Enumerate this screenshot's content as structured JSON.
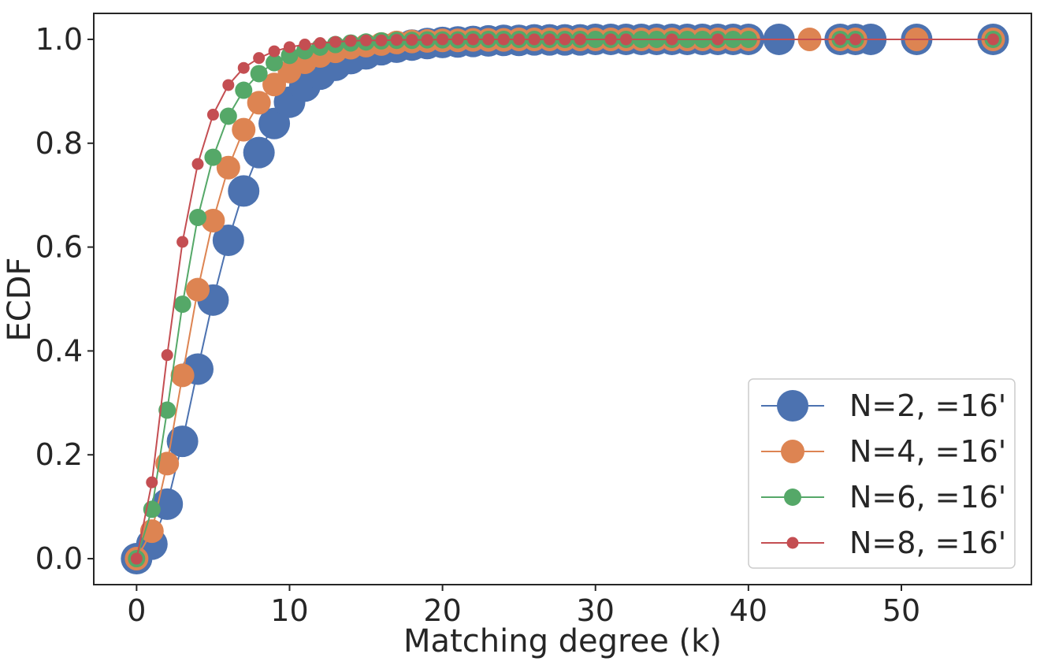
{
  "chart_data": {
    "type": "line",
    "title": "",
    "xlabel": "Matching degree (k)",
    "ylabel": "ECDF",
    "xlim": [
      -2.8,
      58.5
    ],
    "ylim": [
      -0.05,
      1.05
    ],
    "xticks": [
      0,
      10,
      20,
      30,
      40,
      50
    ],
    "xtick_labels": [
      "0",
      "10",
      "20",
      "30",
      "40",
      "50"
    ],
    "yticks": [
      0.0,
      0.2,
      0.4,
      0.6,
      0.8,
      1.0
    ],
    "ytick_labels": [
      "0.0",
      "0.2",
      "0.4",
      "0.6",
      "0.8",
      "1.0"
    ],
    "grid": false,
    "legend_position": "lower-right",
    "series": [
      {
        "name": "N=2,   =16'",
        "color": "#4C72B0",
        "marker_size": 20,
        "x": [
          0,
          1,
          2,
          3,
          4,
          5,
          6,
          7,
          8,
          9,
          10,
          11,
          12,
          13,
          14,
          15,
          16,
          17,
          18,
          19,
          20,
          21,
          22,
          23,
          24,
          25,
          26,
          27,
          28,
          29,
          30,
          31,
          32,
          33,
          34,
          35,
          36,
          37,
          38,
          39,
          40,
          42,
          46,
          47,
          48,
          51,
          56
        ],
        "y": [
          0.0,
          0.028,
          0.105,
          0.226,
          0.365,
          0.498,
          0.613,
          0.708,
          0.782,
          0.838,
          0.879,
          0.91,
          0.933,
          0.95,
          0.963,
          0.972,
          0.98,
          0.985,
          0.989,
          0.992,
          0.994,
          0.995,
          0.996,
          0.997,
          0.998,
          0.998,
          0.999,
          0.999,
          0.999,
          0.999,
          1.0,
          1.0,
          1.0,
          1.0,
          1.0,
          1.0,
          1.0,
          1.0,
          1.0,
          1.0,
          1.0,
          1.0,
          1.0,
          1.0,
          1.0,
          1.0,
          1.0
        ]
      },
      {
        "name": "N=4,   =16'",
        "color": "#DD8452",
        "marker_size": 15,
        "x": [
          0,
          1,
          2,
          3,
          4,
          5,
          6,
          7,
          8,
          9,
          10,
          11,
          12,
          13,
          14,
          15,
          16,
          17,
          18,
          19,
          20,
          21,
          22,
          23,
          24,
          25,
          26,
          27,
          28,
          29,
          30,
          31,
          32,
          33,
          34,
          35,
          36,
          37,
          38,
          39,
          40,
          44,
          46,
          47,
          51,
          56
        ],
        "y": [
          0.0,
          0.053,
          0.183,
          0.353,
          0.518,
          0.651,
          0.753,
          0.826,
          0.878,
          0.913,
          0.938,
          0.956,
          0.968,
          0.977,
          0.984,
          0.988,
          0.991,
          0.994,
          0.996,
          0.997,
          0.998,
          0.998,
          0.999,
          0.999,
          0.999,
          1.0,
          1.0,
          1.0,
          1.0,
          1.0,
          1.0,
          1.0,
          1.0,
          1.0,
          1.0,
          1.0,
          1.0,
          1.0,
          1.0,
          1.0,
          1.0,
          1.0,
          1.0,
          1.0,
          1.0,
          1.0
        ]
      },
      {
        "name": "N=6,   =16'",
        "color": "#55A868",
        "marker_size": 11,
        "x": [
          0,
          1,
          2,
          3,
          4,
          5,
          6,
          7,
          8,
          9,
          10,
          11,
          12,
          13,
          14,
          15,
          16,
          17,
          18,
          19,
          20,
          21,
          22,
          23,
          24,
          25,
          26,
          27,
          28,
          29,
          30,
          31,
          32,
          33,
          34,
          35,
          36,
          37,
          38,
          39,
          40,
          46,
          47,
          56
        ],
        "y": [
          0.0,
          0.095,
          0.286,
          0.49,
          0.657,
          0.773,
          0.852,
          0.902,
          0.934,
          0.955,
          0.969,
          0.978,
          0.985,
          0.99,
          0.993,
          0.995,
          0.997,
          0.998,
          0.998,
          0.999,
          0.999,
          0.999,
          1.0,
          1.0,
          1.0,
          1.0,
          1.0,
          1.0,
          1.0,
          1.0,
          1.0,
          1.0,
          1.0,
          1.0,
          1.0,
          1.0,
          1.0,
          1.0,
          1.0,
          1.0,
          1.0,
          1.0,
          1.0,
          1.0
        ]
      },
      {
        "name": "N=8,   =16'",
        "color": "#C44E52",
        "marker_size": 7.5,
        "x": [
          0,
          1,
          2,
          3,
          4,
          5,
          6,
          7,
          8,
          9,
          10,
          11,
          12,
          13,
          14,
          15,
          16,
          17,
          18,
          19,
          20,
          21,
          22,
          23,
          24,
          25,
          26,
          27,
          28,
          29,
          31,
          32,
          35,
          38,
          46,
          47,
          56
        ],
        "y": [
          0.0,
          0.147,
          0.392,
          0.61,
          0.76,
          0.855,
          0.912,
          0.945,
          0.964,
          0.977,
          0.985,
          0.99,
          0.993,
          0.995,
          0.997,
          0.998,
          0.998,
          0.999,
          0.999,
          0.999,
          1.0,
          1.0,
          1.0,
          1.0,
          1.0,
          1.0,
          1.0,
          1.0,
          1.0,
          1.0,
          1.0,
          1.0,
          1.0,
          1.0,
          1.0,
          1.0,
          1.0
        ]
      }
    ]
  }
}
